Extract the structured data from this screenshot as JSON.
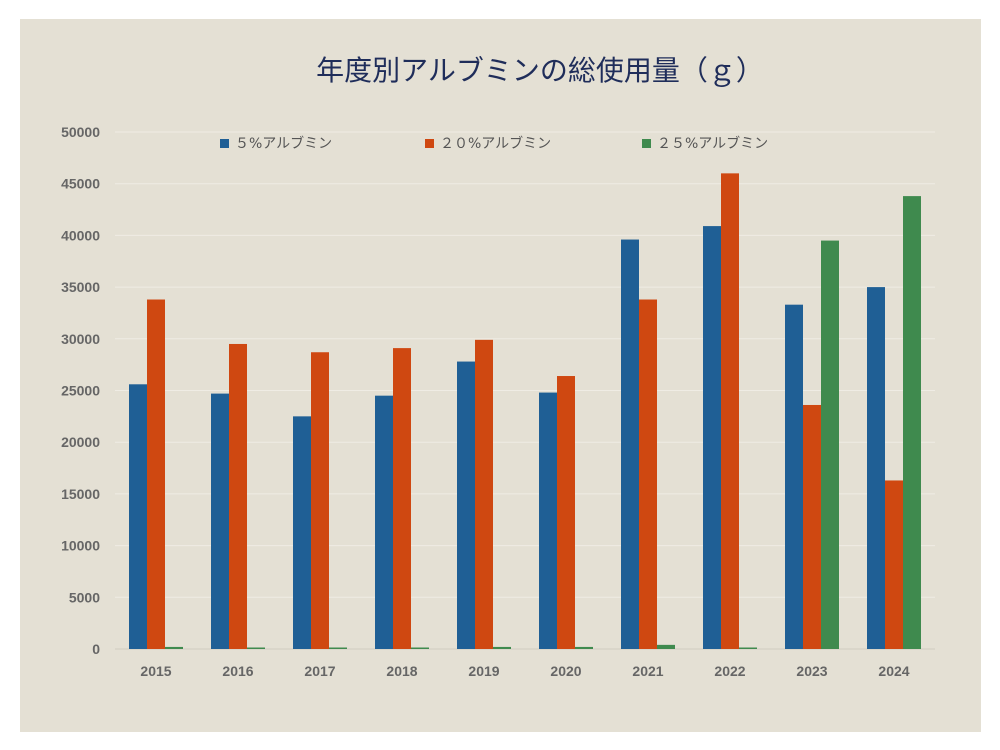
{
  "chart_data": {
    "type": "bar",
    "title": "年度別アルブミンの総使用量（ｇ）",
    "xlabel": "",
    "ylabel": "",
    "categories": [
      "2015",
      "2016",
      "2017",
      "2018",
      "2019",
      "2020",
      "2021",
      "2022",
      "2023",
      "2024"
    ],
    "y_ticks": [
      "0",
      "5000",
      "10000",
      "15000",
      "20000",
      "25000",
      "30000",
      "35000",
      "40000",
      "45000",
      "50000"
    ],
    "ylim": [
      0,
      50000
    ],
    "grid": true,
    "legend_position": "top",
    "series": [
      {
        "name": "５%アルブミン",
        "color": "#1f5f95",
        "values": [
          25600,
          24700,
          22500,
          24500,
          27800,
          24800,
          39600,
          40900,
          33300,
          35000
        ]
      },
      {
        "name": "２０%アルブミン",
        "color": "#cf4811",
        "values": [
          33800,
          29500,
          28700,
          29100,
          29900,
          26400,
          33800,
          46000,
          23600,
          16300
        ]
      },
      {
        "name": "２５%アルブミン",
        "color": "#3f8a4e",
        "values": [
          200,
          100,
          100,
          100,
          200,
          200,
          400,
          100,
          39500,
          43800
        ]
      }
    ]
  }
}
